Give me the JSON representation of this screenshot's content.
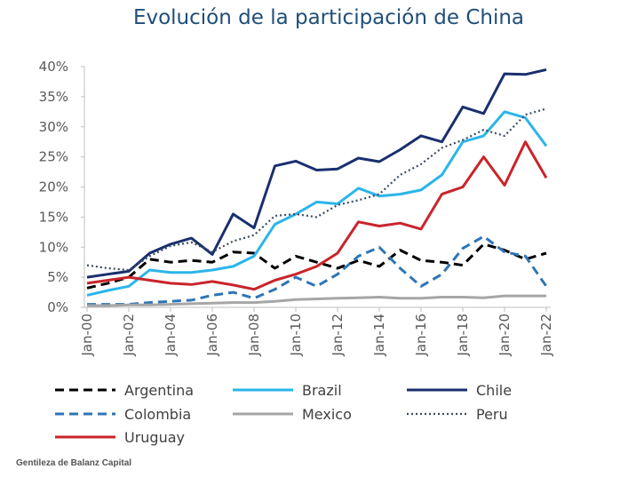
{
  "chart_data": {
    "type": "line",
    "title": "Evolución de la participación de China",
    "xlabel": "",
    "ylabel": "",
    "ylim": [
      0,
      40
    ],
    "y_ticks": [
      "0%",
      "5%",
      "10%",
      "15%",
      "20%",
      "25%",
      "30%",
      "35%",
      "40%"
    ],
    "x": [
      "2000",
      "2001",
      "2002",
      "2003",
      "2004",
      "2005",
      "2006",
      "2007",
      "2008",
      "2009",
      "2010",
      "2011",
      "2012",
      "2013",
      "2014",
      "2015",
      "2016",
      "2017",
      "2018",
      "2019",
      "2020",
      "2021",
      "2022"
    ],
    "x_tick_labels": [
      "Jan-00",
      "Jan-02",
      "Jan-04",
      "Jan-06",
      "Jan-08",
      "Jan-10",
      "Jan-12",
      "Jan-14",
      "Jan-16",
      "Jan-18",
      "Jan-20",
      "Jan-22"
    ],
    "grid": false,
    "legend_position": "bottom",
    "series": [
      {
        "name": "Argentina",
        "color": "#000000",
        "style": "dashed",
        "values": [
          3.2,
          4.0,
          5.0,
          8.0,
          7.5,
          7.8,
          7.5,
          9.2,
          9.0,
          6.5,
          8.5,
          7.5,
          6.5,
          7.8,
          6.8,
          9.5,
          7.8,
          7.5,
          7.0,
          10.5,
          9.5,
          8.0,
          9.0
        ]
      },
      {
        "name": "Brazil",
        "color": "#2bb5ea",
        "style": "solid",
        "values": [
          2.0,
          2.8,
          3.5,
          6.2,
          5.8,
          5.8,
          6.2,
          6.8,
          8.5,
          13.8,
          15.5,
          17.5,
          17.2,
          19.8,
          18.5,
          18.8,
          19.5,
          22.0,
          27.5,
          28.5,
          32.5,
          31.5,
          26.8
        ]
      },
      {
        "name": "Chile",
        "color": "#1a2f6e",
        "style": "solid",
        "values": [
          5.0,
          5.5,
          6.0,
          9.0,
          10.5,
          11.5,
          8.8,
          15.5,
          13.2,
          23.5,
          24.3,
          22.8,
          23.0,
          24.8,
          24.2,
          26.2,
          28.5,
          27.5,
          33.3,
          32.2,
          38.8,
          38.7,
          39.5
        ]
      },
      {
        "name": "Colombia",
        "color": "#2e75b6",
        "style": "dashed",
        "values": [
          0.5,
          0.5,
          0.5,
          0.8,
          1.0,
          1.2,
          2.0,
          2.5,
          1.5,
          3.0,
          5.0,
          3.5,
          5.5,
          8.5,
          10.0,
          6.5,
          3.5,
          5.5,
          9.8,
          11.8,
          9.2,
          8.5,
          3.5
        ]
      },
      {
        "name": "Mexico",
        "color": "#a6a6a6",
        "style": "solid",
        "values": [
          0.3,
          0.3,
          0.4,
          0.4,
          0.5,
          0.6,
          0.7,
          0.8,
          0.8,
          1.0,
          1.3,
          1.4,
          1.5,
          1.6,
          1.7,
          1.5,
          1.5,
          1.7,
          1.7,
          1.6,
          1.9,
          1.9,
          1.9
        ]
      },
      {
        "name": "Peru",
        "color": "#3c4a5e",
        "style": "dotted",
        "values": [
          7.0,
          6.5,
          6.2,
          8.5,
          10.2,
          10.8,
          9.2,
          11.0,
          12.0,
          15.2,
          15.5,
          15.0,
          17.0,
          17.8,
          18.8,
          22.0,
          23.8,
          26.5,
          27.8,
          29.5,
          28.5,
          32.0,
          33.0
        ]
      },
      {
        "name": "Uruguay",
        "color": "#c9242b",
        "style": "solid",
        "values": [
          4.0,
          4.5,
          5.0,
          4.5,
          4.0,
          3.8,
          4.3,
          3.7,
          3.0,
          4.5,
          5.5,
          6.8,
          9.0,
          14.2,
          13.5,
          14.0,
          13.0,
          18.8,
          20.0,
          25.0,
          20.3,
          27.5,
          21.5
        ]
      }
    ]
  },
  "credit": "Gentileza de Balanz Capital"
}
